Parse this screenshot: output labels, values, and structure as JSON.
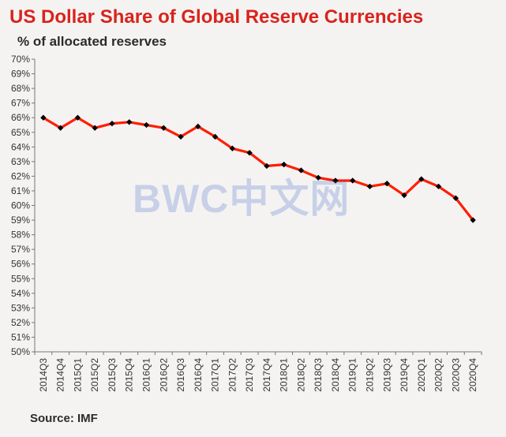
{
  "title": "US Dollar Share of Global  Reserve Currencies",
  "subtitle": "% of allocated reserves",
  "source": "Source: IMF",
  "watermark": "BWC中文网",
  "colors": {
    "title": "#d8241c",
    "line": "#ff1e00",
    "marker": "#000000",
    "watermark": "#2f56c6"
  },
  "chart_data": {
    "type": "line",
    "title": "US Dollar Share of Global  Reserve Currencies",
    "subtitle": "% of allocated reserves",
    "xlabel": "",
    "ylabel": "",
    "ylim": [
      50,
      70
    ],
    "yticks": [
      "50%",
      "51%",
      "52%",
      "53%",
      "54%",
      "55%",
      "56%",
      "57%",
      "58%",
      "59%",
      "60%",
      "61%",
      "62%",
      "63%",
      "64%",
      "65%",
      "66%",
      "67%",
      "68%",
      "69%",
      "70%"
    ],
    "grid": false,
    "categories": [
      "2014Q3",
      "2014Q4",
      "2015Q1",
      "2015Q2",
      "2015Q3",
      "2015Q4",
      "2016Q1",
      "2016Q2",
      "2016Q3",
      "2016Q4",
      "2017Q1",
      "2017Q2",
      "2017Q3",
      "2017Q4",
      "2018Q1",
      "2018Q2",
      "2018Q3",
      "2018Q4",
      "2019Q1",
      "2019Q2",
      "2019Q3",
      "2019Q4",
      "2020Q1",
      "2020Q2",
      "2020Q3",
      "2020Q4"
    ],
    "values": [
      66.0,
      65.3,
      66.0,
      65.3,
      65.6,
      65.7,
      65.5,
      65.3,
      64.7,
      65.4,
      64.7,
      63.9,
      63.6,
      62.7,
      62.8,
      62.4,
      61.9,
      61.7,
      61.7,
      61.3,
      61.5,
      60.7,
      61.8,
      61.3,
      60.5,
      59.0
    ]
  }
}
